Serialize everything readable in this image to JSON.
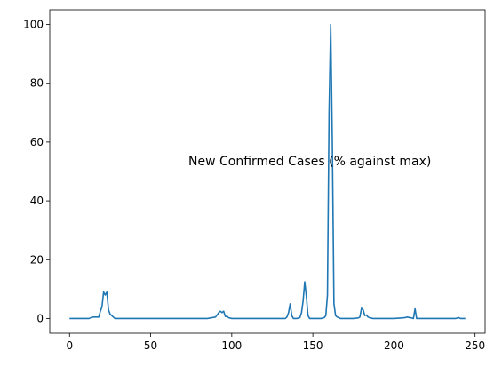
{
  "chart_data": {
    "type": "line",
    "title": "",
    "xlabel": "",
    "ylabel": "",
    "annotation": "New Confirmed Cases  (% against max)",
    "xlim": [
      -12.2,
      256.2
    ],
    "ylim": [
      -5,
      105
    ],
    "xticks": [
      0,
      50,
      100,
      150,
      200,
      250
    ],
    "yticks": [
      0,
      20,
      40,
      60,
      80,
      100
    ],
    "grid": false,
    "legend": "none",
    "line_color": "#1f77b4",
    "series": [
      {
        "x": [
          0,
          5,
          10,
          12,
          14,
          16,
          18,
          19,
          20,
          21,
          22,
          23,
          24,
          25,
          26,
          27,
          28,
          30,
          35,
          40,
          50,
          60,
          70,
          80,
          85,
          88,
          90,
          92,
          93,
          94,
          95,
          96,
          97,
          98,
          100,
          105,
          110,
          120,
          130,
          133,
          134,
          135,
          136,
          137,
          138,
          140,
          142,
          143,
          144,
          145,
          146,
          147,
          148,
          150,
          155,
          157,
          158,
          159,
          160,
          161,
          162,
          163,
          164,
          165,
          166,
          167,
          168,
          170,
          175,
          178,
          179,
          180,
          181,
          182,
          183,
          184,
          185,
          187,
          190,
          200,
          205,
          207,
          208,
          210,
          212,
          213,
          214,
          216,
          220,
          230,
          238,
          240,
          241,
          244
        ],
        "y": [
          0,
          0,
          0,
          0,
          0.5,
          0.5,
          0.5,
          2.5,
          4,
          9,
          8,
          9,
          3,
          1.5,
          1,
          0.5,
          0,
          0,
          0,
          0,
          0,
          0,
          0,
          0,
          0,
          0.3,
          0.5,
          2,
          2.5,
          2,
          2.5,
          0.7,
          0.8,
          0.3,
          0,
          0,
          0,
          0,
          0,
          0,
          0.5,
          2,
          5,
          1,
          0,
          0,
          0.3,
          2,
          6,
          12.5,
          7.5,
          1,
          0,
          0,
          0,
          0.3,
          1,
          8,
          70,
          100,
          60,
          5,
          1,
          0.5,
          0.3,
          0,
          0,
          0,
          0,
          0.2,
          0.5,
          3.5,
          3,
          1,
          1.2,
          0.5,
          0.3,
          0,
          0,
          0,
          0.2,
          0.3,
          0.5,
          0.3,
          0,
          3.3,
          0,
          0,
          0,
          0,
          0,
          0.3,
          0,
          0
        ]
      }
    ]
  }
}
